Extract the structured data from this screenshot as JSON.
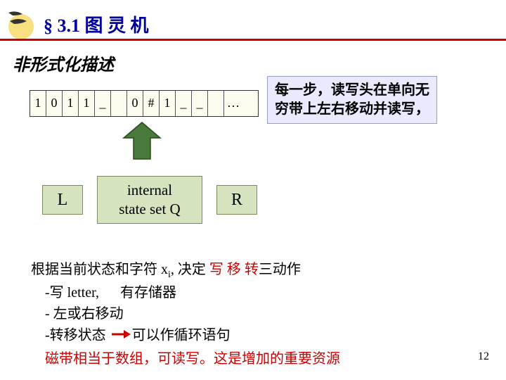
{
  "colors": {
    "title": "#000099",
    "underline": "#cc0000",
    "callout_bg": "#eaeaff",
    "callout_border": "#9999cc",
    "box_bg": "#d6e3bf",
    "box_border": "#7a8a5a",
    "tape_bg": "#fbfced",
    "red_text": "#cc0000",
    "arrow_fill": "#4a7a3a",
    "arrow_stroke": "#2a4a1a",
    "logo_sun": "#f8e080",
    "logo_bird": "#333333"
  },
  "title": "§ 3.1  图 灵 机",
  "subtitle": "非形式化描述",
  "callout": "每一步，读写头在单向无穷带上左右移动并读写，",
  "tape": {
    "cells": [
      "1",
      "0",
      "1",
      "1",
      "_",
      "",
      "0",
      "#",
      "1",
      "_",
      "_",
      ""
    ],
    "ellipsis": "…"
  },
  "boxes": {
    "L": "L",
    "Q_line1": "internal",
    "Q_line2": "state set Q",
    "R": "R"
  },
  "body": {
    "l1_a": "根据当前状态和字符 x",
    "l1_sub": "i",
    "l1_b": ", 决定 ",
    "l1_red": "写 移 转",
    "l1_c": "三动作",
    "l2_a": "    -写 letter,      有存储器",
    "l3": "    - 左或右移动",
    "l4_a": "    -转移状态 ",
    "l4_b": "可以作循环语句",
    "l5_red": "    磁带相当于数组，可读写。这是增加的重要资源"
  },
  "page": "12",
  "arrow": {
    "width": 60,
    "height": 56
  }
}
